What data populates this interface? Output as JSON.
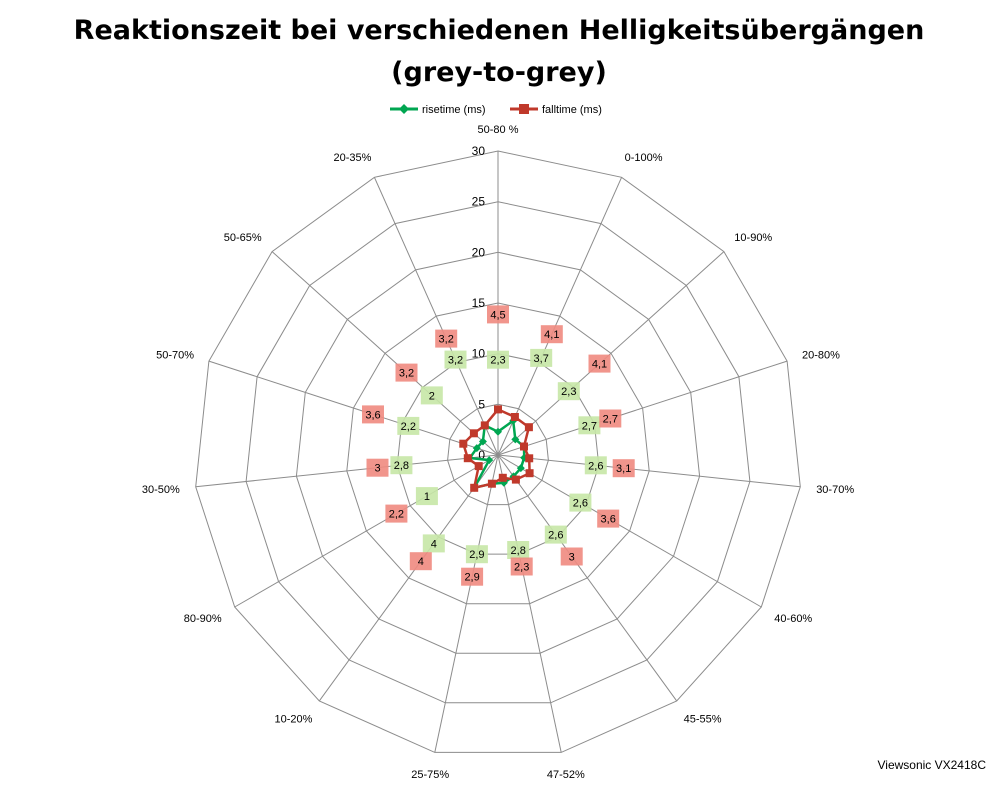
{
  "chart_data": {
    "type": "radar",
    "title_lines": [
      "Reaktionszeit bei verschiedenen Helligkeitsübergängen",
      "(grey-to-grey)"
    ],
    "categories": [
      "50-80 %",
      "0-100%",
      "10-90%",
      "20-80%",
      "30-70%",
      "40-60%",
      "45-55%",
      "47-52%",
      "25-75%",
      "10-20%",
      "80-90%",
      "30-50%",
      "50-70%",
      "50-65%",
      "20-35%"
    ],
    "r_ticks": [
      "0",
      "5",
      "10",
      "15",
      "20",
      "25",
      "30"
    ],
    "r_range": [
      0,
      30
    ],
    "series": [
      {
        "name": "risetime (ms)",
        "color": "#00a651",
        "label_bg": "#c6e7a6",
        "values": [
          2.3,
          3.7,
          2.3,
          2.7,
          2.6,
          2.6,
          2.6,
          2.8,
          2.9,
          4,
          1,
          2.8,
          2.2,
          2,
          3.2
        ],
        "labels": [
          "2,3",
          "3,7",
          "2,3",
          "2,7",
          "2,6",
          "2,6",
          "2,6",
          "2,8",
          "2,9",
          "4",
          "1",
          "2,8",
          "2,2",
          "2",
          "3,2"
        ]
      },
      {
        "name": "falltime (ms)",
        "color": "#c0392b",
        "label_bg": "#f08a80",
        "values": [
          4.5,
          4.1,
          4.1,
          2.7,
          3.1,
          3.6,
          3.0,
          2.3,
          2.9,
          4,
          2.2,
          3,
          3.6,
          3.2,
          3.2
        ],
        "labels": [
          "4,5",
          "4,1",
          "4,1",
          "2,7",
          "3,1",
          "3,6",
          "3",
          "2,3",
          "2,9",
          "4",
          "2,2",
          "3",
          "3,6",
          "3,2",
          "3,2"
        ]
      }
    ],
    "legend_position": "top",
    "grid": true
  },
  "credit": "Viewsonic VX2418C"
}
